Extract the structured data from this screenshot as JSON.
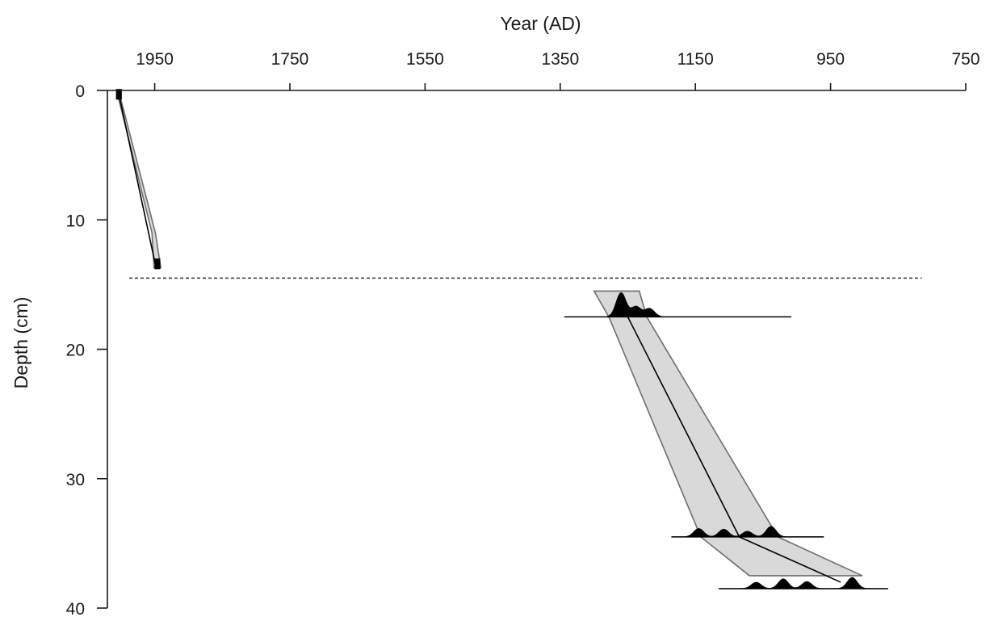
{
  "chart_data": {
    "type": "line",
    "title": "",
    "xlabel": "Year (AD)",
    "ylabel": "Depth (cm)",
    "x_axis_position": "top",
    "x_reversed": true,
    "y_reversed": true,
    "xlim": [
      2020,
      750
    ],
    "ylim": [
      0,
      40
    ],
    "x_ticks": [
      1950,
      1750,
      1550,
      1350,
      1150,
      950,
      750
    ],
    "y_ticks": [
      0,
      10,
      20,
      30,
      40
    ],
    "grid": false,
    "legend": "none",
    "colors": {
      "band_fill": "#d9d9d9",
      "band_stroke": "#6e6e6e",
      "median": "#000000",
      "pdf": "#000000"
    },
    "hiatus_depth": 14.5,
    "upper_section": {
      "age_band": [
        {
          "depth": 0.3,
          "young": 2005,
          "old": 2002
        },
        {
          "depth": 11,
          "young": 1954,
          "old": 1949
        },
        {
          "depth": 13.7,
          "young": 1951,
          "old": 1941
        }
      ],
      "median": [
        {
          "depth": 0.3,
          "year": 2003
        },
        {
          "depth": 13.7,
          "year": 1948
        }
      ],
      "dates": [
        {
          "depth": 0.3,
          "year": 2003
        },
        {
          "depth": 13.4,
          "year": 1946
        }
      ]
    },
    "lower_section": {
      "age_band": [
        {
          "depth": 15.5,
          "young": 1300,
          "old": 1233
        },
        {
          "depth": 17.5,
          "young": 1278,
          "old": 1222
        },
        {
          "depth": 34.5,
          "young": 1142,
          "old": 1028
        },
        {
          "depth": 37.5,
          "young": 1070,
          "old": 903
        }
      ],
      "median": [
        {
          "depth": 17.5,
          "year": 1250
        },
        {
          "depth": 34.5,
          "year": 1085
        },
        {
          "depth": 38,
          "year": 935
        }
      ],
      "radiocarbon_dates": [
        {
          "depth": 17.5,
          "range": [
            1343,
            1008
          ],
          "peaks": [
            {
              "year": 1260,
              "height": 3.5
            },
            {
              "year": 1238,
              "height": 1.5
            },
            {
              "year": 1218,
              "height": 1.2
            }
          ]
        },
        {
          "depth": 34.5,
          "range": [
            1185,
            960
          ],
          "peaks": [
            {
              "year": 1145,
              "height": 1.2
            },
            {
              "year": 1108,
              "height": 1.1
            },
            {
              "year": 1073,
              "height": 0.8
            },
            {
              "year": 1038,
              "height": 1.5
            }
          ]
        },
        {
          "depth": 38.5,
          "range": [
            1115,
            865
          ],
          "peaks": [
            {
              "year": 1060,
              "height": 0.9
            },
            {
              "year": 1020,
              "height": 1.4
            },
            {
              "year": 985,
              "height": 1.0
            },
            {
              "year": 918,
              "height": 1.6
            }
          ]
        }
      ]
    }
  }
}
